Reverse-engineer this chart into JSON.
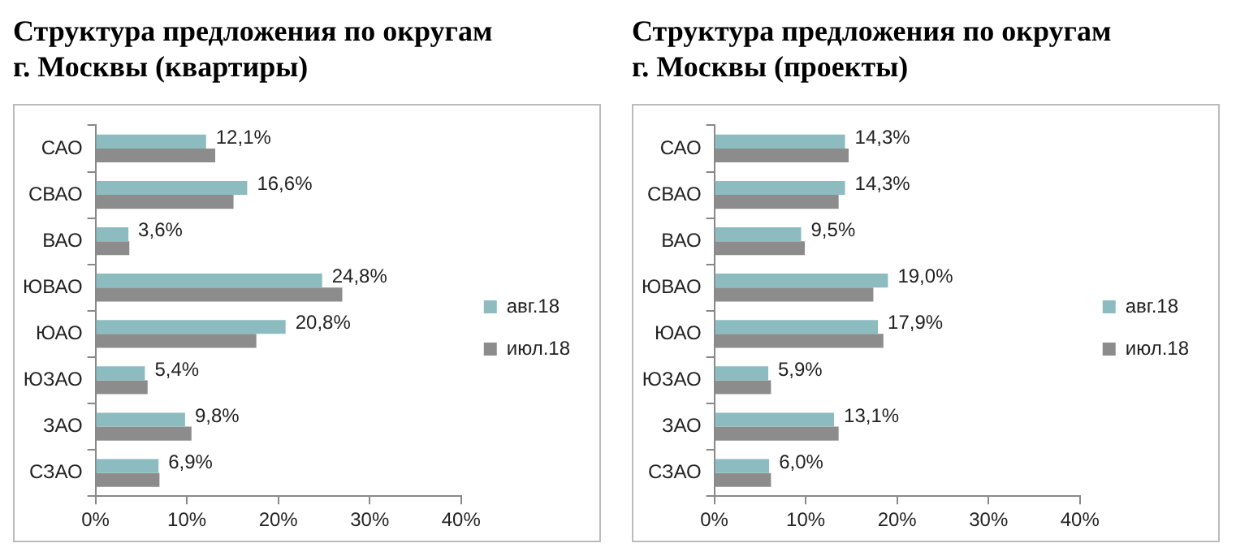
{
  "chart_data": [
    {
      "type": "bar",
      "orientation": "horizontal",
      "title": "Структура  предложения по округам г. Москвы (квартиры)",
      "categories": [
        "САО",
        "СВАО",
        "ВАО",
        "ЮВАО",
        "ЮАО",
        "ЮЗАО",
        "ЗАО",
        "СЗАО"
      ],
      "series": [
        {
          "name": "авг.18",
          "color": "#8cbcc0",
          "values": [
            12.1,
            16.6,
            3.6,
            24.8,
            20.8,
            5.4,
            9.8,
            6.9
          ],
          "value_labels": [
            "12,1%",
            "16,6%",
            "3,6%",
            "24,8%",
            "20,8%",
            "5,4%",
            "9,8%",
            "6,9%"
          ]
        },
        {
          "name": "июл.18",
          "color": "#8c8c8c",
          "values": [
            13.1,
            15.1,
            3.7,
            27.0,
            17.6,
            5.7,
            10.5,
            7.0
          ]
        }
      ],
      "xlim": [
        0,
        40
      ],
      "xticks": [
        {
          "value": 0,
          "label": "0%"
        },
        {
          "value": 10,
          "label": "10%"
        },
        {
          "value": 20,
          "label": "20%"
        },
        {
          "value": 30,
          "label": "30%"
        },
        {
          "value": 40,
          "label": "40%"
        }
      ],
      "legend": "right"
    },
    {
      "type": "bar",
      "orientation": "horizontal",
      "title": "Структура  предложения по округам г. Москвы (проекты)",
      "categories": [
        "САО",
        "СВАО",
        "ВАО",
        "ЮВАО",
        "ЮАО",
        "ЮЗАО",
        "ЗАО",
        "СЗАО"
      ],
      "series": [
        {
          "name": "авг.18",
          "color": "#8cbcc0",
          "values": [
            14.3,
            14.3,
            9.5,
            19.0,
            17.9,
            5.9,
            13.1,
            6.0
          ],
          "value_labels": [
            "14,3%",
            "14,3%",
            "9,5%",
            "19,0%",
            "17,9%",
            "5,9%",
            "13,1%",
            "6,0%"
          ]
        },
        {
          "name": "июл.18",
          "color": "#8c8c8c",
          "values": [
            14.7,
            13.6,
            9.9,
            17.4,
            18.5,
            6.2,
            13.6,
            6.2
          ]
        }
      ],
      "xlim": [
        0,
        40
      ],
      "xticks": [
        {
          "value": 0,
          "label": "0%"
        },
        {
          "value": 10,
          "label": "10%"
        },
        {
          "value": 20,
          "label": "20%"
        },
        {
          "value": 30,
          "label": "30%"
        },
        {
          "value": 40,
          "label": "40%"
        }
      ],
      "legend": "right"
    }
  ]
}
